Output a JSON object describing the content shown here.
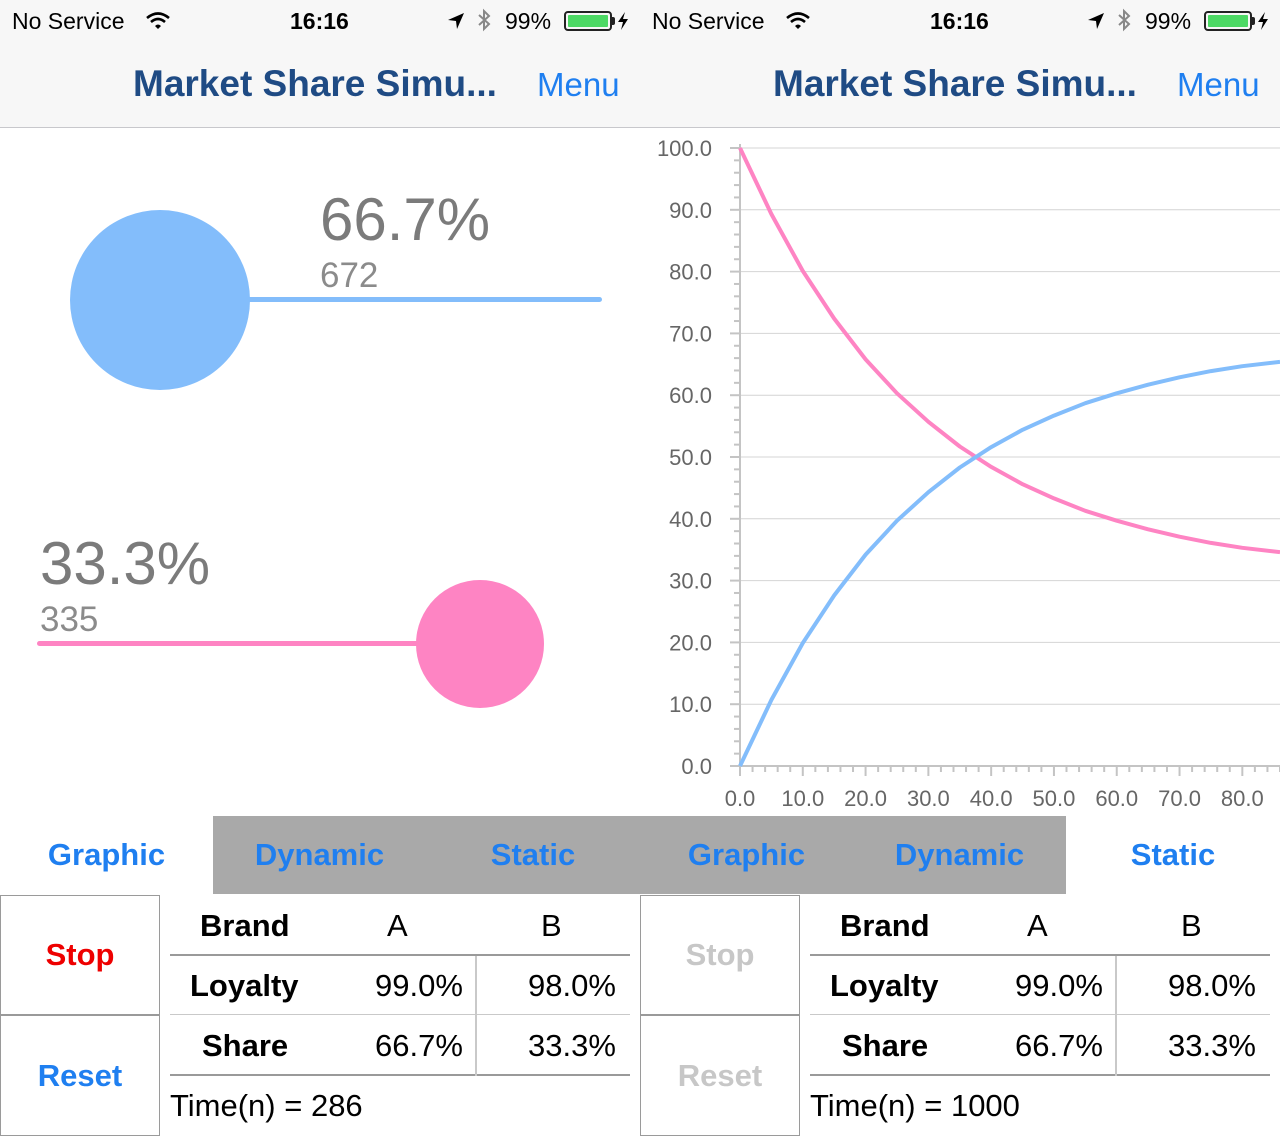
{
  "status_bar": {
    "carrier": "No Service",
    "time": "16:16",
    "battery_pct": "99%",
    "battery_level": 0.99
  },
  "nav": {
    "title": "Market Share Simu...",
    "menu_label": "Menu"
  },
  "colors": {
    "brand_a": "#83bdfb",
    "brand_b": "#fe84c3",
    "accent": "#1f7ff0",
    "nav_title": "#1f4b84",
    "stop_active": "#ee0000",
    "disabled": "#c7c7c7"
  },
  "icons": {
    "wifi": "wifi-icon",
    "location": "location-arrow-icon",
    "bluetooth": "bluetooth-icon",
    "battery": "battery-icon",
    "charging": "charging-bolt-icon"
  },
  "graphic": {
    "brand_a": {
      "share": "66.7%",
      "count": "672"
    },
    "brand_b": {
      "share": "33.3%",
      "count": "335"
    }
  },
  "tabs": [
    {
      "label": "Graphic"
    },
    {
      "label": "Dynamic"
    },
    {
      "label": "Static"
    }
  ],
  "left_screen": {
    "selected_tab": "Graphic",
    "buttons_enabled": true,
    "time_text": "Time(n) = 286"
  },
  "right_screen": {
    "selected_tab": "Static",
    "buttons_enabled": false,
    "time_text": "Time(n) = 1000"
  },
  "controls": {
    "stop_label": "Stop",
    "reset_label": "Reset"
  },
  "table": {
    "header": {
      "label": "Brand",
      "a": "A",
      "b": "B"
    },
    "rows": [
      {
        "label": "Loyalty",
        "a": "99.0%",
        "b": "98.0%"
      },
      {
        "label": "Share",
        "a": "66.7%",
        "b": "33.3%"
      }
    ]
  },
  "chart_data": {
    "type": "line",
    "x_ticks": [
      "0.0",
      "10.0",
      "20.0",
      "30.0",
      "40.0",
      "50.0",
      "60.0",
      "70.0",
      "80.0"
    ],
    "y_ticks": [
      "0.0",
      "10.0",
      "20.0",
      "30.0",
      "40.0",
      "50.0",
      "60.0",
      "70.0",
      "80.0",
      "90.0",
      "100.0"
    ],
    "xlim": [
      0,
      86
    ],
    "ylim": [
      0,
      100
    ],
    "grid": "horizontal",
    "series": [
      {
        "color": "#fe84c3",
        "x": [
          0,
          5,
          10,
          15,
          20,
          25,
          30,
          35,
          40,
          45,
          50,
          55,
          60,
          65,
          70,
          75,
          80,
          86
        ],
        "y": [
          100,
          89.3,
          80.1,
          72.4,
          65.8,
          60.3,
          55.7,
          51.7,
          48.4,
          45.6,
          43.3,
          41.3,
          39.7,
          38.3,
          37.1,
          36.1,
          35.3,
          34.6
        ]
      },
      {
        "color": "#83bdfb",
        "x": [
          0,
          5,
          10,
          15,
          20,
          25,
          30,
          35,
          40,
          45,
          50,
          55,
          60,
          65,
          70,
          75,
          80,
          86
        ],
        "y": [
          0,
          10.7,
          19.9,
          27.6,
          34.2,
          39.7,
          44.3,
          48.3,
          51.6,
          54.4,
          56.7,
          58.7,
          60.3,
          61.7,
          62.9,
          63.9,
          64.7,
          65.4
        ]
      }
    ]
  }
}
